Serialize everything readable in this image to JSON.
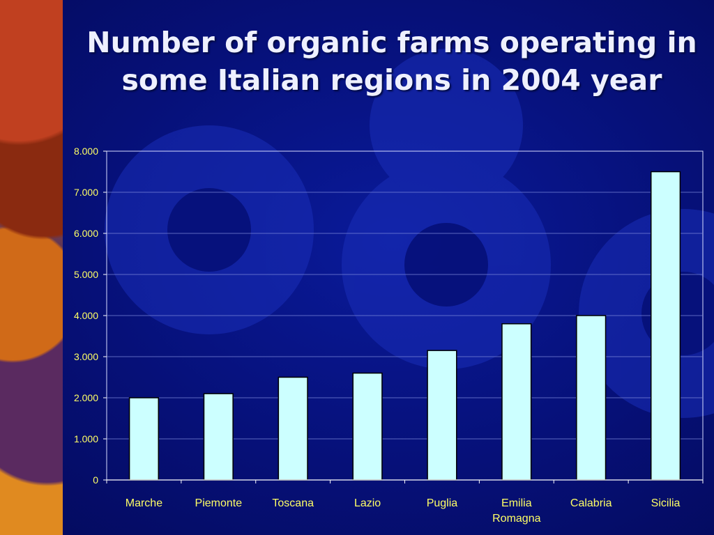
{
  "slide": {
    "title_line1": "Number of organic farms operating in",
    "title_line2": "some Italian regions in 2004 year"
  },
  "colors": {
    "bar_fill": "#ccffff",
    "bar_stroke": "#000000",
    "label_color": "#ffff66",
    "title_color": "#eef0ff",
    "background": "#061078"
  },
  "chart_data": {
    "type": "bar",
    "title": "",
    "xlabel": "",
    "ylabel": "",
    "categories": [
      "Marche",
      "Piemonte",
      "Toscana",
      "Lazio",
      "Puglia",
      "Emilia Romagna",
      "Calabria",
      "Sicilia"
    ],
    "category_label_lines": [
      [
        "Marche"
      ],
      [
        "Piemonte"
      ],
      [
        "Toscana"
      ],
      [
        "Lazio"
      ],
      [
        "Puglia"
      ],
      [
        "Emilia",
        "Romagna"
      ],
      [
        "Calabria"
      ],
      [
        "Sicilia"
      ]
    ],
    "values": [
      2000,
      2100,
      2500,
      2600,
      3150,
      3800,
      4000,
      7500
    ],
    "ylim": [
      0,
      8000
    ],
    "yticks": [
      0,
      1000,
      2000,
      3000,
      4000,
      5000,
      6000,
      7000,
      8000
    ],
    "ytick_labels": [
      "0",
      "1.000",
      "2.000",
      "3.000",
      "4.000",
      "5.000",
      "6.000",
      "7.000",
      "8.000"
    ],
    "grid": true,
    "legend": "none"
  }
}
